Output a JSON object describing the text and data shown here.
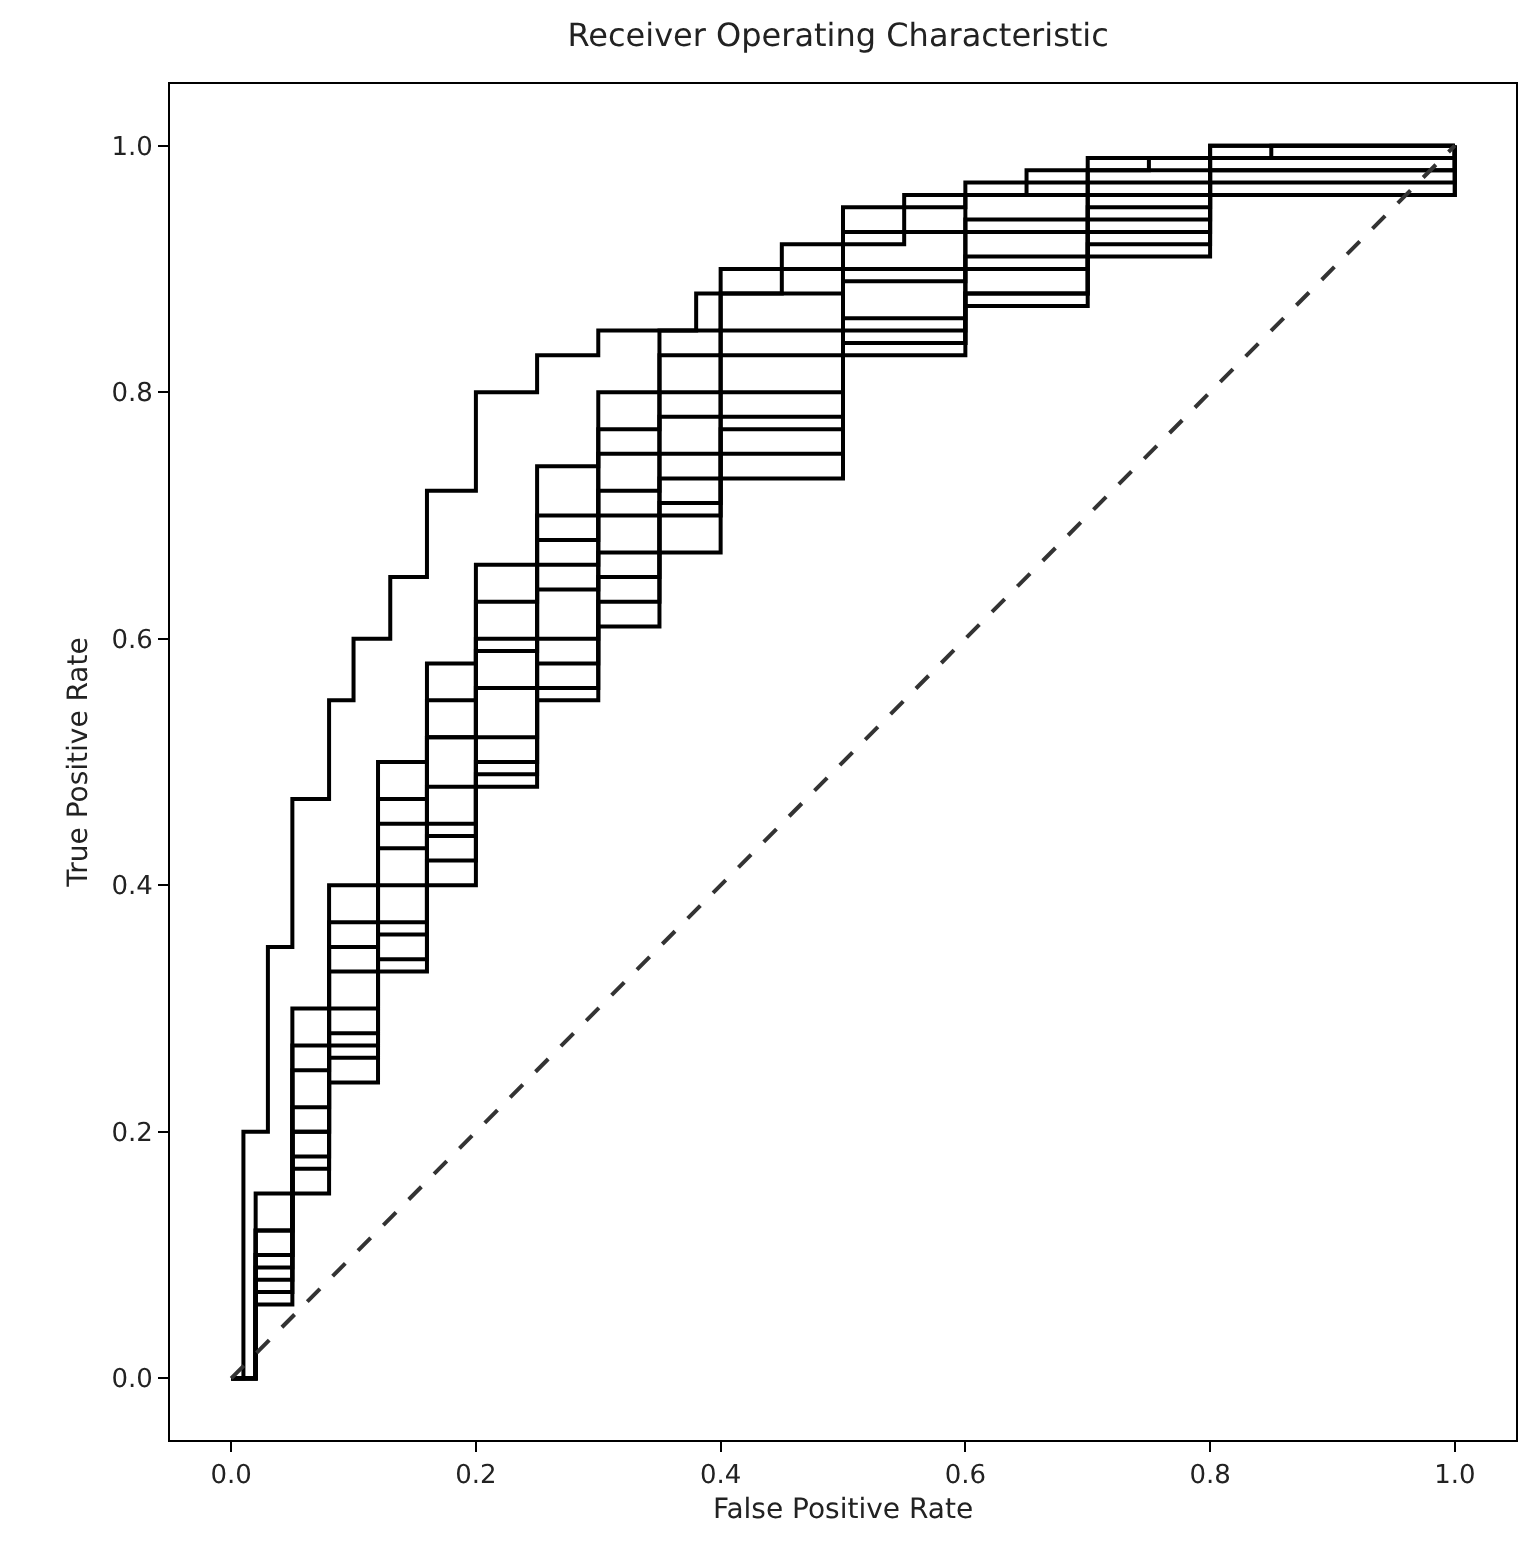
{
  "chart_data": {
    "type": "step",
    "title": "Receiver Operating Characteristic",
    "xlabel": "False Positive Rate",
    "ylabel": "True Positive Rate",
    "xlim": [
      -0.05,
      1.05
    ],
    "ylim": [
      -0.05,
      1.05
    ],
    "xticks": [
      {
        "value": 0,
        "label": "0.0"
      },
      0.2,
      0.4,
      0.6,
      0.8,
      {
        "value": 1,
        "label": "1.0"
      }
    ],
    "yticks": [
      {
        "value": 0,
        "label": "0.0"
      },
      0.2,
      0.4,
      0.6,
      0.8,
      {
        "value": 1,
        "label": "1.0"
      }
    ],
    "line_style": "solid",
    "x": [
      0,
      0.02,
      0.05,
      0.08,
      0.12,
      0.16,
      0.2,
      0.25,
      0.3,
      0.35,
      0.4,
      0.5,
      0.6,
      0.7,
      0.8,
      1
    ],
    "series": [
      {
        "color": "#000000",
        "x": [
          0,
          0.01,
          0.03,
          0.05,
          0.08,
          0.1,
          0.13,
          0.16,
          0.2,
          0.25,
          0.3,
          0.38,
          0.45,
          0.55,
          0.65,
          0.75,
          0.85,
          1
        ],
        "values": [
          0,
          0.2,
          0.35,
          0.47,
          0.55,
          0.6,
          0.65,
          0.72,
          0.8,
          0.83,
          0.85,
          0.88,
          0.92,
          0.96,
          0.98,
          0.99,
          1,
          1
        ]
      },
      {
        "color": "#000000",
        "values": [
          0,
          0.15,
          0.3,
          0.4,
          0.5,
          0.58,
          0.66,
          0.74,
          0.8,
          0.85,
          0.9,
          0.95,
          0.97,
          0.99,
          1,
          1
        ]
      },
      {
        "color": "#000000",
        "values": [
          0,
          0.12,
          0.27,
          0.37,
          0.47,
          0.55,
          0.63,
          0.7,
          0.77,
          0.83,
          0.88,
          0.93,
          0.96,
          0.98,
          1,
          1
        ]
      },
      {
        "color": "#000000",
        "values": [
          0,
          0.1,
          0.22,
          0.33,
          0.43,
          0.52,
          0.6,
          0.68,
          0.75,
          0.8,
          0.85,
          0.9,
          0.94,
          0.97,
          0.99,
          1
        ]
      },
      {
        "color": "#000000",
        "values": [
          0,
          0.12,
          0.25,
          0.35,
          0.45,
          0.52,
          0.59,
          0.66,
          0.72,
          0.78,
          0.83,
          0.89,
          0.93,
          0.96,
          0.99,
          1
        ]
      },
      {
        "color": "#000000",
        "values": [
          0,
          0.08,
          0.2,
          0.3,
          0.4,
          0.48,
          0.56,
          0.64,
          0.7,
          0.75,
          0.8,
          0.86,
          0.91,
          0.95,
          0.98,
          1
        ]
      },
      {
        "color": "#000000",
        "values": [
          0,
          0.1,
          0.2,
          0.28,
          0.37,
          0.45,
          0.52,
          0.6,
          0.67,
          0.73,
          0.78,
          0.85,
          0.9,
          0.94,
          0.98,
          1
        ]
      },
      {
        "color": "#000000",
        "values": [
          0,
          0.09,
          0.18,
          0.27,
          0.36,
          0.44,
          0.5,
          0.58,
          0.65,
          0.71,
          0.77,
          0.84,
          0.88,
          0.93,
          0.97,
          1
        ]
      },
      {
        "color": "#000000",
        "values": [
          0,
          0.07,
          0.17,
          0.26,
          0.34,
          0.42,
          0.49,
          0.56,
          0.63,
          0.7,
          0.75,
          0.84,
          0.88,
          0.92,
          0.96,
          1
        ]
      },
      {
        "color": "#000000",
        "values": [
          0,
          0.06,
          0.15,
          0.24,
          0.33,
          0.4,
          0.48,
          0.55,
          0.61,
          0.67,
          0.73,
          0.83,
          0.87,
          0.91,
          0.96,
          1
        ]
      },
      {
        "color": "#333333",
        "type": "line",
        "line_style": "dashed",
        "x": [
          0,
          1
        ],
        "values": [
          0,
          1
        ]
      }
    ]
  }
}
